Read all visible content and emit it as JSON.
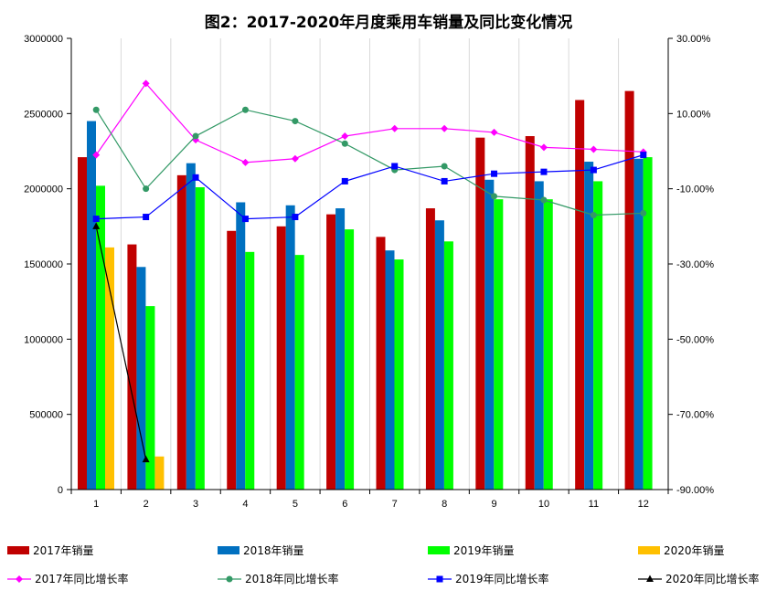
{
  "chart_data": {
    "type": "bar",
    "title": "图2：2017-2020年月度乘用车销量及同比变化情况",
    "categories": [
      "1",
      "2",
      "3",
      "4",
      "5",
      "6",
      "7",
      "8",
      "9",
      "10",
      "11",
      "12"
    ],
    "y_left": {
      "min": 0,
      "max": 3000000,
      "ticks": [
        "0",
        "500000",
        "1000000",
        "1500000",
        "2000000",
        "2500000",
        "3000000"
      ]
    },
    "y_right": {
      "min": -90,
      "max": 30,
      "ticks": [
        "-90.00%",
        "-70.00%",
        "-50.00%",
        "-30.00%",
        "-10.00%",
        "10.00%",
        "30.00%"
      ]
    },
    "bar_series": [
      {
        "name": "2017年销量",
        "color": "#C00000",
        "values": [
          2210000,
          1630000,
          2090000,
          1720000,
          1750000,
          1830000,
          1680000,
          1870000,
          2340000,
          2350000,
          2590000,
          2650000
        ]
      },
      {
        "name": "2018年销量",
        "color": "#0070C0",
        "values": [
          2450000,
          1480000,
          2170000,
          1910000,
          1890000,
          1870000,
          1590000,
          1790000,
          2060000,
          2050000,
          2180000,
          2200000
        ]
      },
      {
        "name": "2019年销量",
        "color": "#00FF00",
        "values": [
          2020000,
          1220000,
          2010000,
          1580000,
          1560000,
          1730000,
          1530000,
          1650000,
          1930000,
          1930000,
          2050000,
          2210000
        ]
      },
      {
        "name": "2020年销量",
        "color": "#FFC000",
        "values": [
          1610000,
          220000,
          null,
          null,
          null,
          null,
          null,
          null,
          null,
          null,
          null,
          null
        ]
      }
    ],
    "line_series": [
      {
        "name": "2017年同比增长率",
        "color": "#FF00FF",
        "marker": "diamond",
        "values": [
          -1.0,
          18.0,
          3.0,
          -3.0,
          -2.0,
          4.0,
          6.0,
          6.0,
          5.0,
          1.0,
          0.5,
          -0.2
        ]
      },
      {
        "name": "2018年同比增长率",
        "color": "#339966",
        "marker": "circle",
        "values": [
          11.0,
          -10.0,
          4.0,
          11.0,
          8.0,
          2.0,
          -5.0,
          -4.0,
          -12.0,
          -13.0,
          -17.0,
          -16.5
        ]
      },
      {
        "name": "2019年同比增长率",
        "color": "#0000FF",
        "marker": "square",
        "values": [
          -18.0,
          -17.5,
          -7.0,
          -18.0,
          -17.5,
          -8.0,
          -4.0,
          -8.0,
          -6.0,
          -5.5,
          -5.0,
          -1.0
        ]
      },
      {
        "name": "2020年同比增长率",
        "color": "#000000",
        "marker": "triangle",
        "values": [
          -20.0,
          -82.0,
          null,
          null,
          null,
          null,
          null,
          null,
          null,
          null,
          null,
          null
        ]
      }
    ]
  }
}
